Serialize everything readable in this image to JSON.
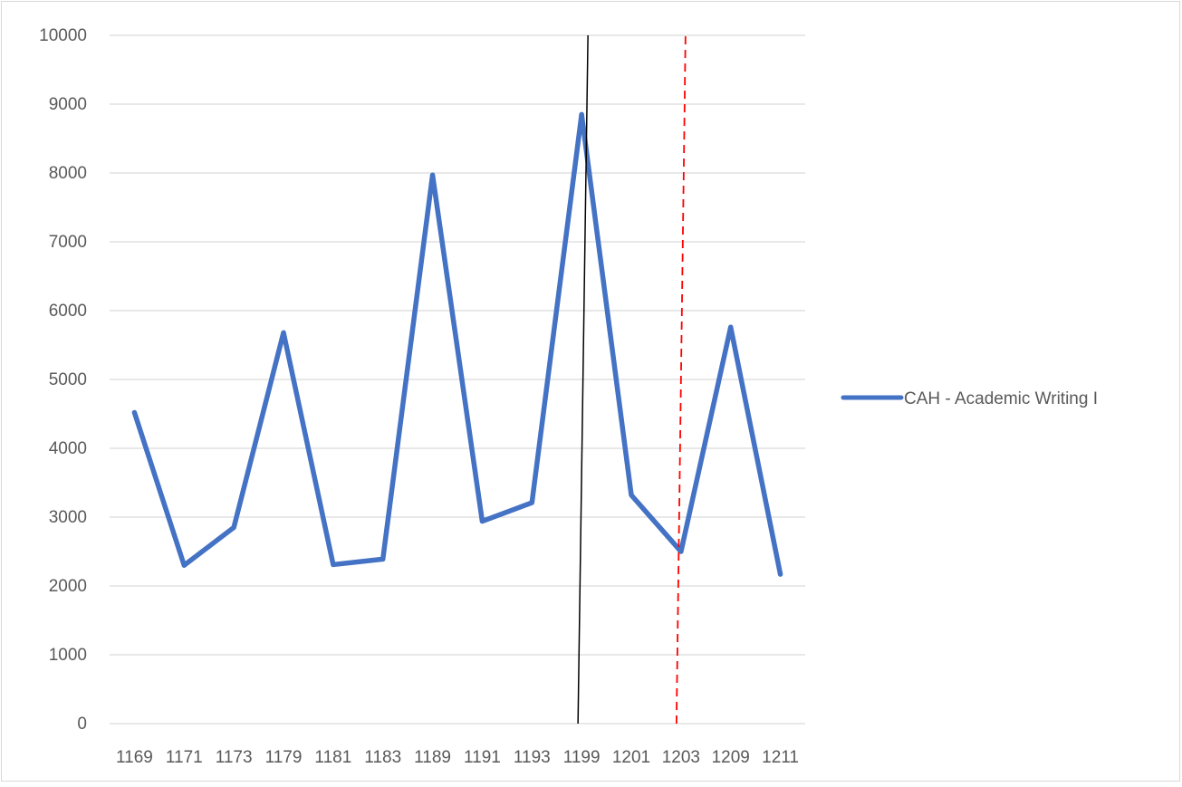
{
  "chart_data": {
    "type": "line",
    "title": "",
    "xlabel": "",
    "ylabel": "",
    "categories": [
      "1169",
      "1171",
      "1173",
      "1179",
      "1181",
      "1183",
      "1189",
      "1191",
      "1193",
      "1199",
      "1201",
      "1203",
      "1209",
      "1211"
    ],
    "series": [
      {
        "name": "CAH - Academic Writing I",
        "values": [
          4520,
          2300,
          2850,
          5680,
          2310,
          2390,
          7970,
          2940,
          3210,
          8850,
          3320,
          2500,
          5760,
          2170
        ]
      }
    ],
    "ylim": [
      0,
      10000
    ],
    "yticks": [
      "0",
      "1000",
      "2000",
      "3000",
      "4000",
      "5000",
      "6000",
      "7000",
      "8000",
      "9000",
      "10000"
    ],
    "grid": "horizontal",
    "legend": "right",
    "colors": {
      "series": "#4472c4",
      "gridline": "#d9d9d9",
      "solid_marker_line": "#000000",
      "dashed_marker_line": "#ff0000"
    },
    "annotations": [
      {
        "kind": "solid-vertical-line",
        "at_category": "1199"
      },
      {
        "kind": "dashed-vertical-line",
        "at_category": "1203"
      }
    ]
  }
}
